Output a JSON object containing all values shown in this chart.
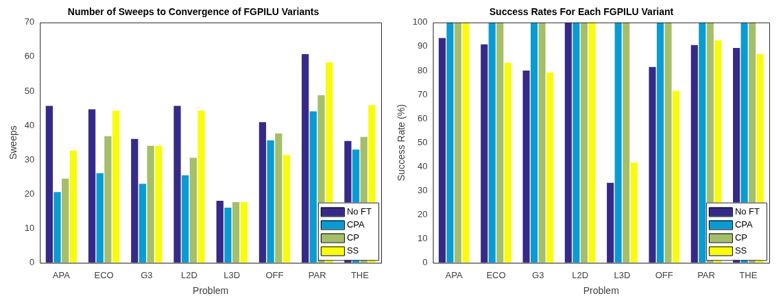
{
  "chart_data": [
    {
      "type": "bar",
      "title": "Number of Sweeps to Convergence of FGPILU Variants",
      "xlabel": "Problem",
      "ylabel": "Sweeps",
      "categories": [
        "APA",
        "ECO",
        "G3",
        "L2D",
        "L3D",
        "OFF",
        "PAR",
        "THE"
      ],
      "series": [
        {
          "name": "No FT",
          "color": "#352a87",
          "values": [
            45.7,
            44.7,
            36.1,
            45.7,
            18.1,
            41.0,
            60.8,
            35.5
          ]
        },
        {
          "name": "CPA",
          "color": "#0a9bd3",
          "values": [
            20.6,
            26.1,
            23.0,
            25.5,
            16.1,
            35.7,
            44.1,
            33.0
          ]
        },
        {
          "name": "CP",
          "color": "#a5be6a",
          "values": [
            24.5,
            36.9,
            34.1,
            30.6,
            17.7,
            37.7,
            48.8,
            36.7
          ]
        },
        {
          "name": "SS",
          "color": "#f9fb0e",
          "values": [
            32.7,
            44.3,
            34.1,
            44.3,
            17.7,
            31.4,
            58.4,
            45.9
          ]
        }
      ],
      "ylim": [
        0,
        70
      ],
      "yticks": [
        0,
        10,
        20,
        30,
        40,
        50,
        60,
        70
      ],
      "grid": false,
      "legend": "bottom right"
    },
    {
      "type": "bar",
      "title": "Success Rates For Each FGPILU Variant",
      "xlabel": "Problem",
      "ylabel": "Success Rate (%)",
      "categories": [
        "APA",
        "ECO",
        "G3",
        "L2D",
        "L3D",
        "OFF",
        "PAR",
        "THE"
      ],
      "series": [
        {
          "name": "No FT",
          "color": "#352a87",
          "values": [
            93.5,
            90.9,
            80.0,
            100,
            33.3,
            81.5,
            90.6,
            89.4
          ]
        },
        {
          "name": "CPA",
          "color": "#0a9bd3",
          "values": [
            100,
            100,
            100,
            100,
            100,
            100,
            100,
            100
          ]
        },
        {
          "name": "CP",
          "color": "#a5be6a",
          "values": [
            100,
            100,
            100,
            100,
            100,
            100,
            100,
            100
          ]
        },
        {
          "name": "SS",
          "color": "#f9fb0e",
          "values": [
            100,
            83.3,
            79.2,
            100,
            41.7,
            71.6,
            92.6,
            86.8
          ]
        }
      ],
      "ylim": [
        0,
        100
      ],
      "yticks": [
        0,
        10,
        20,
        30,
        40,
        50,
        60,
        70,
        80,
        90,
        100
      ],
      "grid": false,
      "legend": "bottom right"
    }
  ]
}
